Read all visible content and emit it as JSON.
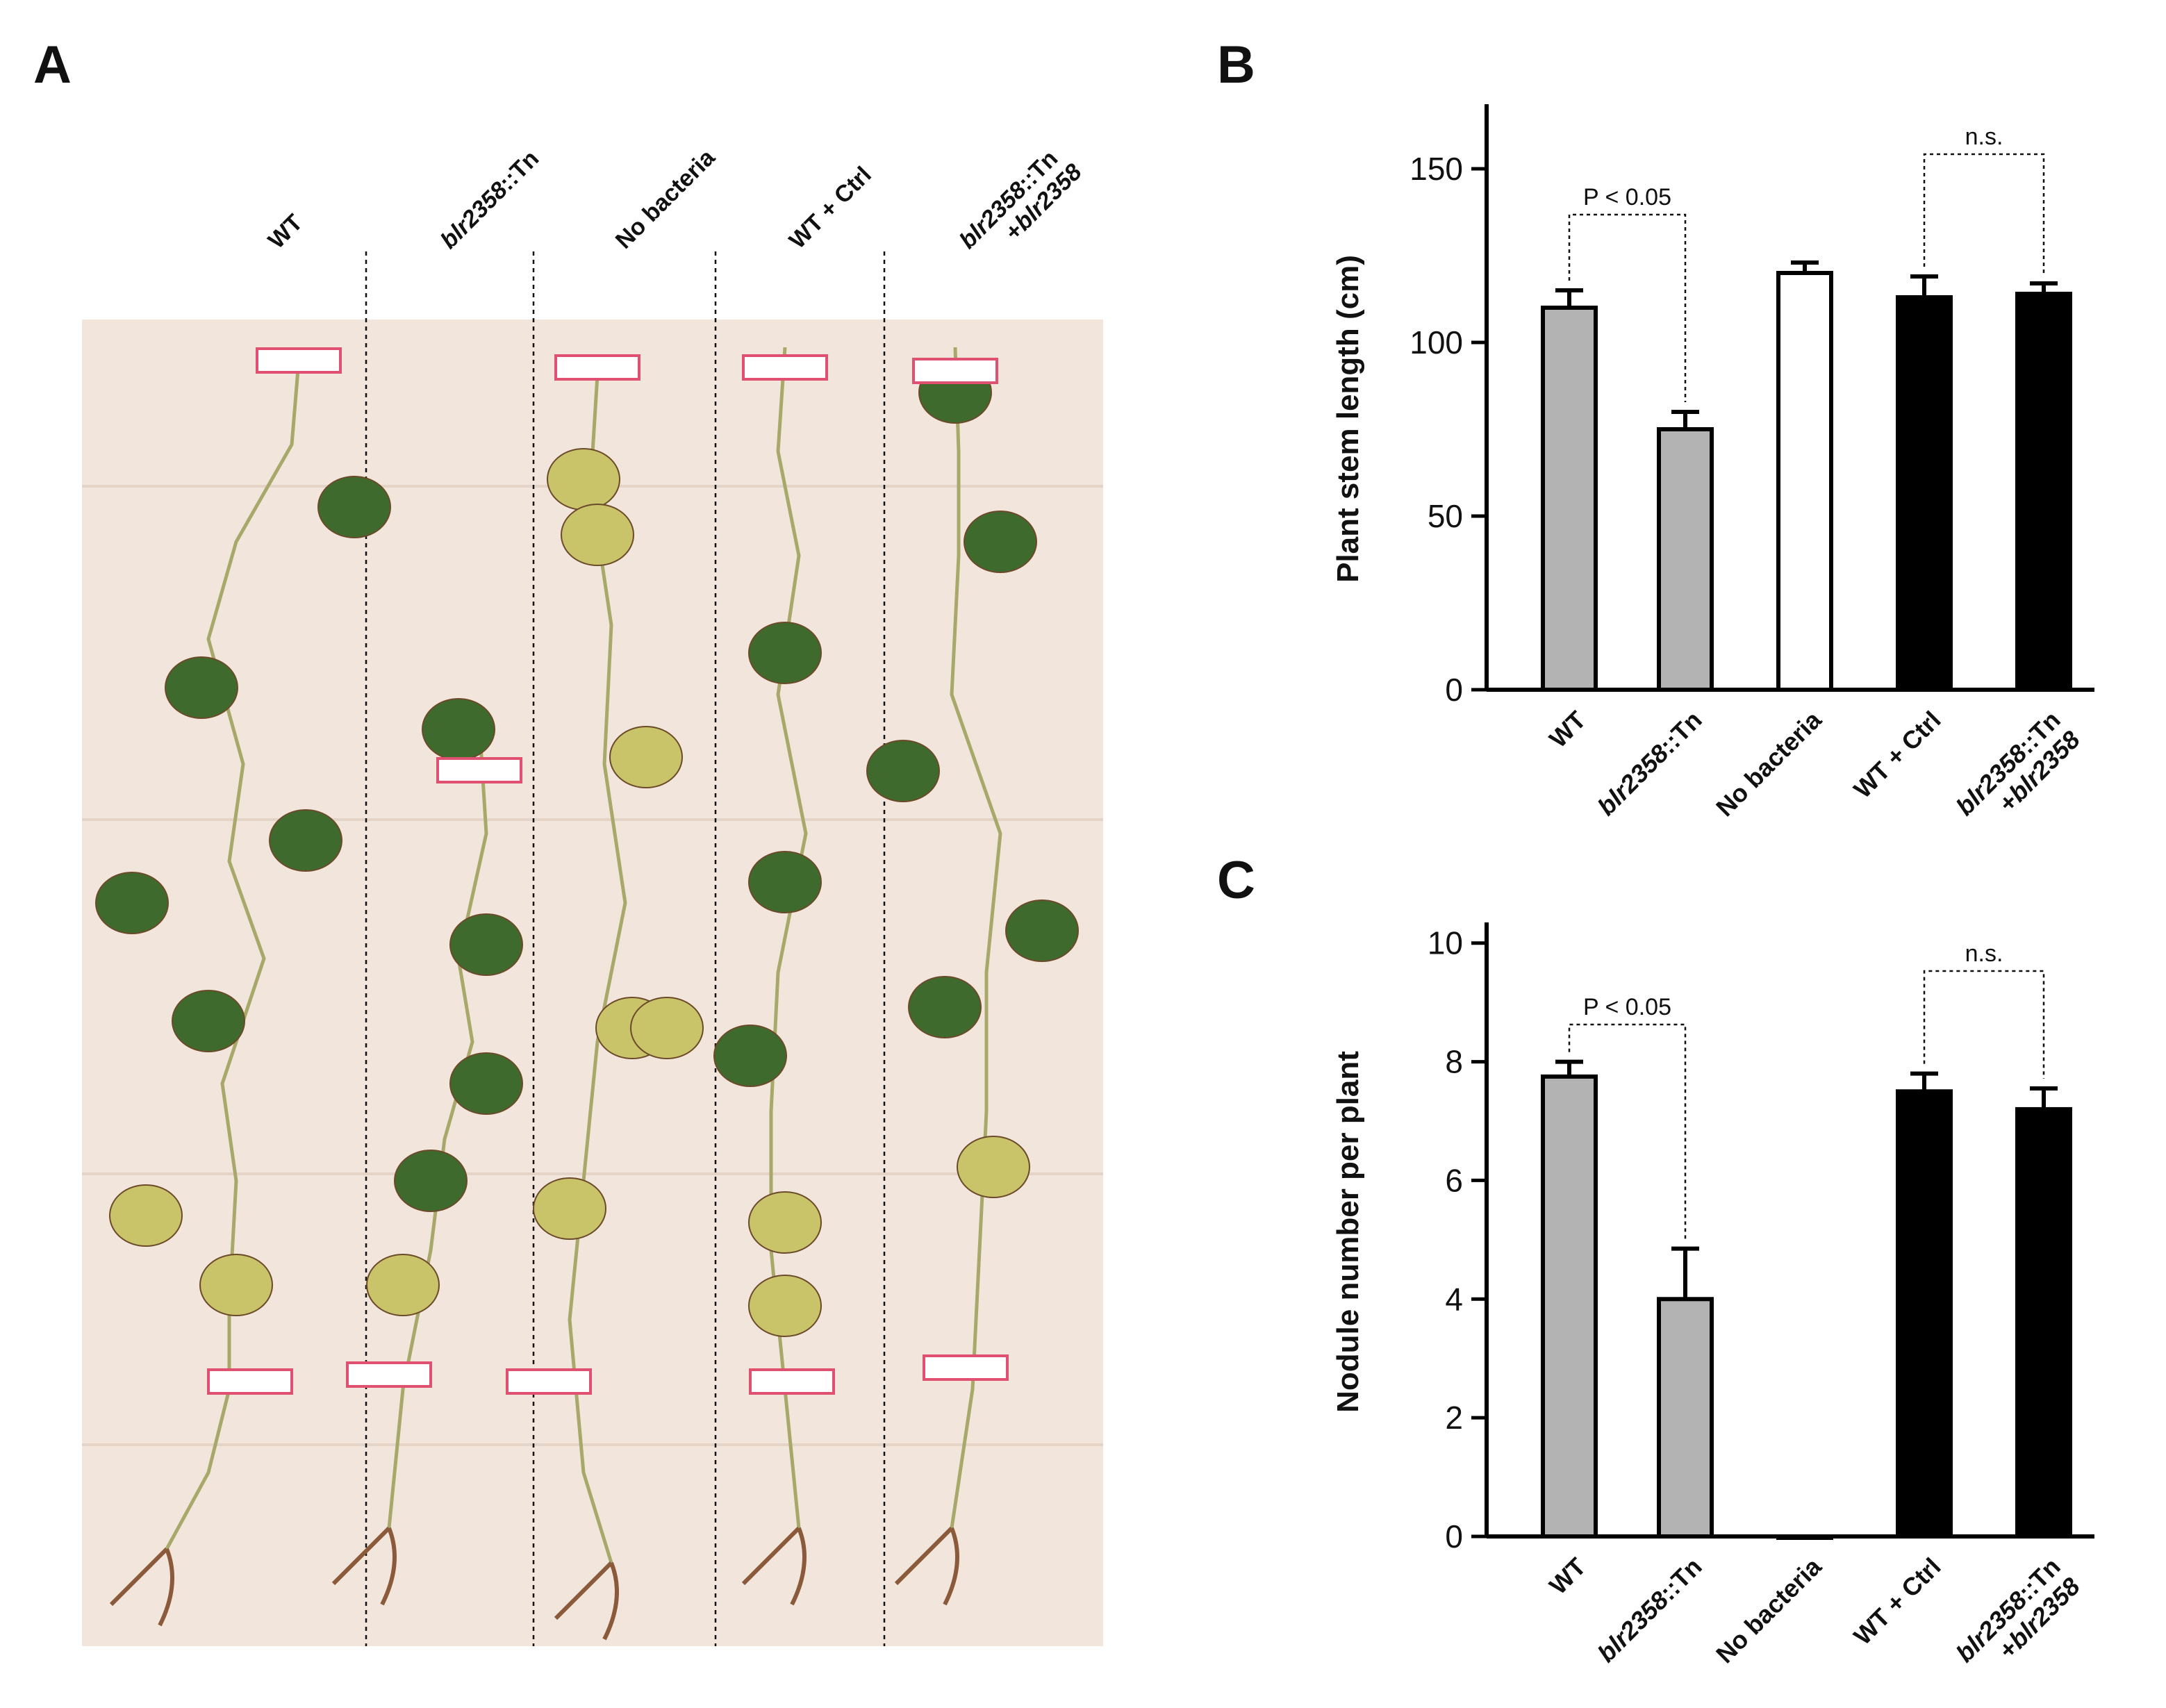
{
  "panels": {
    "a_label": "A",
    "b_label": "B",
    "c_label": "C"
  },
  "photo": {
    "groups": [
      {
        "name": "WT",
        "italic": "",
        "suffix": "WT",
        "line2": ""
      },
      {
        "name": "blr2358::Tn",
        "italic": "blr2358",
        "suffix": "::Tn",
        "line2": ""
      },
      {
        "name": "No bacteria",
        "italic": "",
        "suffix": "No bacteria",
        "line2": ""
      },
      {
        "name": "WT + Ctrl",
        "italic": "",
        "suffix": "WT + Ctrl",
        "line2": ""
      },
      {
        "name": "blr2358::Tn +blr2358",
        "italic": "blr2358",
        "suffix": "::Tn",
        "line2_prefix": "+",
        "line2": "blr2358"
      }
    ],
    "background_color": "#f2e6dc",
    "leaf_color": "#3f6a2e",
    "yellow_leaf_color": "#c9c46a"
  },
  "colors": {
    "gray_bar": "#b3b3b3",
    "white_bar": "#ffffff",
    "black_bar": "#000000"
  },
  "chart_data": [
    {
      "type": "bar",
      "panel": "B",
      "categories": [
        "WT",
        "blr2358::Tn",
        "No bacteria",
        "WT + Ctrl",
        "blr2358::Tn +blr2358"
      ],
      "values": [
        110,
        75,
        120,
        113,
        114
      ],
      "errors": [
        5,
        5,
        3,
        6,
        3
      ],
      "bar_colors": [
        "gray",
        "gray",
        "white",
        "black",
        "black"
      ],
      "ylabel": "Plant stem length (cm)",
      "ylim": [
        0,
        160
      ],
      "yticks": [
        0,
        50,
        100,
        150
      ],
      "ytick_labels": [
        "0",
        "50",
        "100",
        "150"
      ],
      "annotations": [
        {
          "text": "P < 0.05",
          "from": 0,
          "to": 1
        },
        {
          "text": "n.s.",
          "from": 3,
          "to": 4
        }
      ]
    },
    {
      "type": "bar",
      "panel": "C",
      "categories": [
        "WT",
        "blr2358::Tn",
        "No bacteria",
        "WT + Ctrl",
        "blr2358::Tn +blr2358"
      ],
      "values": [
        7.75,
        4.0,
        0,
        7.5,
        7.2
      ],
      "errors": [
        0.25,
        0.85,
        0,
        0.3,
        0.35
      ],
      "bar_colors": [
        "gray",
        "gray",
        "white",
        "black",
        "black"
      ],
      "ylabel": "Nodule number per plant",
      "ylim": [
        0,
        10.5
      ],
      "yticks": [
        0,
        2,
        4,
        6,
        8,
        10
      ],
      "ytick_labels": [
        "0",
        "2",
        "4",
        "6",
        "8",
        "10"
      ],
      "annotations": [
        {
          "text": "P < 0.05",
          "from": 0,
          "to": 1
        },
        {
          "text": "n.s.",
          "from": 3,
          "to": 4
        }
      ]
    }
  ]
}
